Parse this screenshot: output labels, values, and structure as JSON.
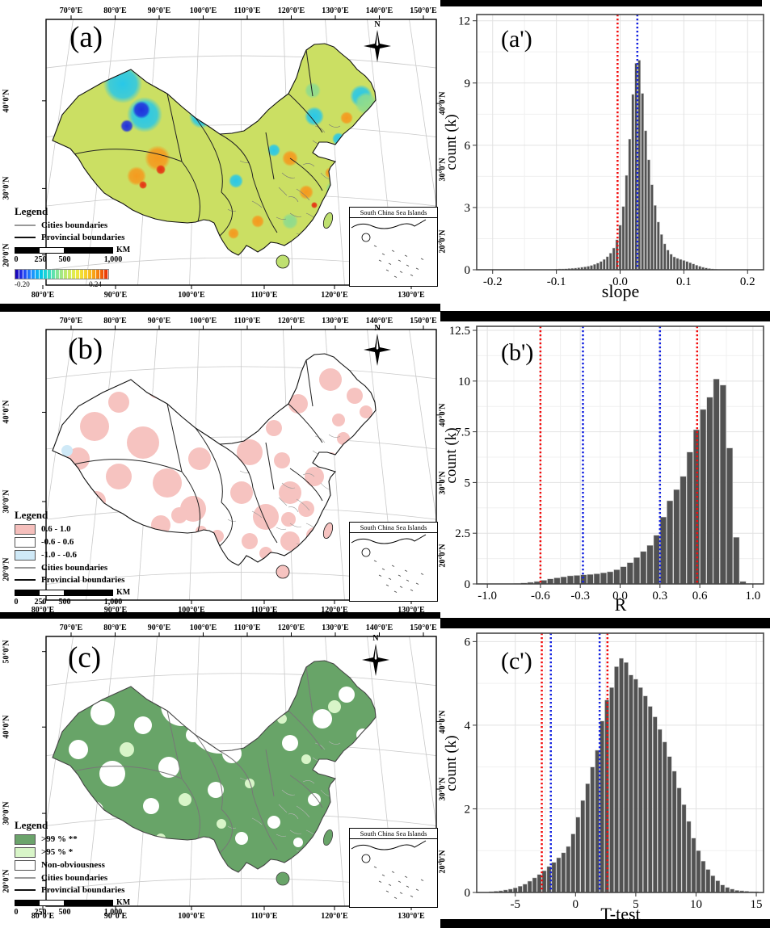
{
  "maps": [
    {
      "id": "a",
      "label": "(a)",
      "compass": "N",
      "top_axis": [
        "70°0'E",
        "80°0'E",
        "90°0'E",
        "100°0'E",
        "110°0'E",
        "120°0'E",
        "130°0'E",
        "140°0'E",
        "150°0'E"
      ],
      "bottom_axis": [
        "80°0'E",
        "90°0'E",
        "100°0'E",
        "110°0'E",
        "120°0'E",
        "130°0'E"
      ],
      "left_axis": [
        "40°0'N",
        "30°0'N",
        "20°0'N"
      ],
      "right_axis": [
        "40°0'N",
        "30°0'N",
        "20°0'N"
      ],
      "legend": {
        "title": "Legend",
        "items": [
          {
            "swatch": "line-gray",
            "label": "Cities boundaries"
          },
          {
            "swatch": "line-black",
            "label": "Provincial boundaries"
          }
        ]
      },
      "scalebar": {
        "labels": [
          "0",
          "250",
          "500",
          "1,000"
        ],
        "unit": "KM"
      },
      "colorbar": {
        "min": "-0.20",
        "max": "0.24"
      },
      "inset_title": "South China Sea Islands"
    },
    {
      "id": "b",
      "label": "(b)",
      "compass": "N",
      "top_axis": [
        "70°0'E",
        "80°0'E",
        "90°0'E",
        "100°0'E",
        "110°0'E",
        "120°0'E",
        "130°0'E",
        "140°0'E",
        "150°0'E"
      ],
      "bottom_axis": [
        "80°0'E",
        "90°0'E",
        "100°0'E",
        "110°0'E",
        "120°0'E",
        "130°0'E"
      ],
      "left_axis": [
        "40°0'N",
        "30°0'N",
        "20°0'N"
      ],
      "right_axis": [
        "40°0'N",
        "30°0'N",
        "20°0'N"
      ],
      "legend": {
        "title": "Legend",
        "items": [
          {
            "swatch": "pink",
            "label": "0.6 - 1.0"
          },
          {
            "swatch": "white",
            "label": "-0.6 - 0.6"
          },
          {
            "swatch": "blue",
            "label": "-1.0 - -0.6"
          },
          {
            "swatch": "line-gray",
            "label": "Cities boundaries"
          },
          {
            "swatch": "line-black",
            "label": "Provincial boundaries"
          }
        ]
      },
      "scalebar": {
        "labels": [
          "0",
          "250",
          "500",
          "1,000"
        ],
        "unit": "KM"
      },
      "inset_title": "South China Sea Islands"
    },
    {
      "id": "c",
      "label": "(c)",
      "compass": "N",
      "top_axis": [
        "70°0'E",
        "80°0'E",
        "90°0'E",
        "100°0'E",
        "110°0'E",
        "120°0'E",
        "130°0'E",
        "140°0'E",
        "150°0'E"
      ],
      "bottom_axis": [
        "80°0'E",
        "90°0'E",
        "100°0'E",
        "110°0'E",
        "120°0'E",
        "130°0'E"
      ],
      "left_axis": [
        "50°0'N",
        "40°0'N",
        "30°0'N",
        "20°0'N"
      ],
      "right_axis": [
        "40°0'N",
        "30°0'N",
        "20°0'N"
      ],
      "legend": {
        "title": "Legend",
        "items": [
          {
            "swatch": "green",
            "label": ">99 % **"
          },
          {
            "swatch": "lightgreen",
            "label": ">95 % *"
          },
          {
            "swatch": "white",
            "label": "Non-obviousness"
          },
          {
            "swatch": "line-gray",
            "label": "Cities boundaries"
          },
          {
            "swatch": "line-black",
            "label": "Provincial boundaries"
          }
        ]
      },
      "scalebar": {
        "labels": [
          "0",
          "250",
          "500",
          "1,000"
        ],
        "unit": "KM"
      },
      "inset_title": "South China Sea Islands"
    }
  ],
  "chart_data": [
    {
      "type": "bar",
      "subtype": "histogram",
      "panel_label": "(a')",
      "xlabel": "slope",
      "ylabel": "count (k)",
      "xlim": [
        -0.225,
        0.225
      ],
      "ylim": [
        0,
        12.3
      ],
      "xticks": [
        -0.2,
        -0.1,
        0.0,
        0.1,
        0.2
      ],
      "xtick_labels": [
        "-0.2",
        "-0.1",
        "0.0",
        "0.1",
        "0.2"
      ],
      "yticks": [
        0,
        3,
        6,
        9,
        12
      ],
      "ytick_labels": [
        "0",
        "3",
        "6",
        "9",
        "12"
      ],
      "grid": true,
      "bar_color": "#525252",
      "bins": {
        "start": -0.1,
        "step": 0.005
      },
      "values": [
        0.03,
        0.04,
        0.04,
        0.05,
        0.06,
        0.07,
        0.08,
        0.1,
        0.12,
        0.14,
        0.17,
        0.21,
        0.26,
        0.32,
        0.4,
        0.5,
        0.63,
        0.8,
        1.05,
        1.45,
        2.15,
        3.05,
        4.55,
        6.3,
        8.45,
        9.95,
        10.1,
        8.5,
        6.7,
        5.3,
        4.1,
        3.1,
        2.3,
        1.7,
        1.25,
        0.95,
        0.75,
        0.62,
        0.55,
        0.5,
        0.45,
        0.4,
        0.34,
        0.28,
        0.22,
        0.17,
        0.12,
        0.09,
        0.06,
        0.04,
        0.03
      ],
      "vlines": [
        {
          "x": -0.004,
          "color": "#f20c0c",
          "style": "dotted"
        },
        {
          "x": 0.027,
          "color": "#1322e0",
          "style": "dotted"
        }
      ]
    },
    {
      "type": "bar",
      "subtype": "histogram",
      "panel_label": "(b')",
      "xlabel": "R",
      "ylabel": "count (k)",
      "xlim": [
        -1.08,
        1.08
      ],
      "ylim": [
        0,
        12.7
      ],
      "xticks": [
        -1.0,
        -0.6,
        -0.3,
        0.0,
        0.3,
        0.6,
        1.0
      ],
      "xtick_labels": [
        "-1.0",
        "-0.6",
        "-0.3",
        "0.0",
        "0.3",
        "0.6",
        "1.0"
      ],
      "yticks": [
        0,
        2.5,
        5,
        7.5,
        10,
        12.5
      ],
      "ytick_labels": [
        "0",
        "2.5",
        "5",
        "7.5",
        "10",
        "12.5"
      ],
      "grid": true,
      "bar_color": "#525252",
      "bins": {
        "start": -0.775,
        "step": 0.05
      },
      "values": [
        0.02,
        0.05,
        0.08,
        0.12,
        0.18,
        0.25,
        0.3,
        0.35,
        0.4,
        0.42,
        0.45,
        0.47,
        0.5,
        0.55,
        0.6,
        0.7,
        0.85,
        1.05,
        1.3,
        1.6,
        1.9,
        2.4,
        3.3,
        4.1,
        4.65,
        5.3,
        6.5,
        7.6,
        8.6,
        9.2,
        10.1,
        9.8,
        6.7,
        2.3,
        0.12
      ],
      "vlines": [
        {
          "x": -0.6,
          "color": "#f20c0c",
          "style": "dotted"
        },
        {
          "x": -0.28,
          "color": "#1322e0",
          "style": "dotted"
        },
        {
          "x": 0.3,
          "color": "#1322e0",
          "style": "dotted"
        },
        {
          "x": 0.58,
          "color": "#f20c0c",
          "style": "dotted"
        }
      ]
    },
    {
      "type": "bar",
      "subtype": "histogram",
      "panel_label": "(c')",
      "xlabel": "T-test",
      "ylabel": "count (k)",
      "xlim": [
        -8.2,
        15.6
      ],
      "ylim": [
        0,
        6.2
      ],
      "xticks": [
        -5,
        0,
        5,
        10,
        15
      ],
      "xtick_labels": [
        "-5",
        "0",
        "5",
        "10",
        "15"
      ],
      "yticks": [
        0,
        2,
        4,
        6
      ],
      "ytick_labels": [
        "0",
        "2",
        "4",
        "6"
      ],
      "grid": true,
      "bar_color": "#525252",
      "bins": {
        "start": -7.0,
        "step": 0.4
      },
      "values": [
        0.02,
        0.03,
        0.04,
        0.06,
        0.08,
        0.11,
        0.15,
        0.2,
        0.27,
        0.35,
        0.43,
        0.52,
        0.62,
        0.72,
        0.83,
        0.95,
        1.1,
        1.4,
        1.8,
        2.2,
        2.6,
        3.0,
        3.4,
        4.1,
        4.6,
        4.9,
        5.4,
        5.6,
        5.5,
        5.2,
        5.1,
        4.9,
        4.7,
        4.45,
        4.2,
        3.9,
        3.6,
        3.25,
        2.9,
        2.5,
        2.1,
        1.7,
        1.3,
        1.0,
        0.75,
        0.55,
        0.4,
        0.28,
        0.18,
        0.12,
        0.08,
        0.05,
        0.04,
        0.03,
        0.02,
        0.02
      ],
      "vlines": [
        {
          "x": -2.8,
          "color": "#f20c0c",
          "style": "dotted"
        },
        {
          "x": -2.05,
          "color": "#1322e0",
          "style": "dotted"
        },
        {
          "x": 2.0,
          "color": "#1322e0",
          "style": "dotted"
        },
        {
          "x": 2.65,
          "color": "#f20c0c",
          "style": "dotted"
        }
      ]
    }
  ]
}
